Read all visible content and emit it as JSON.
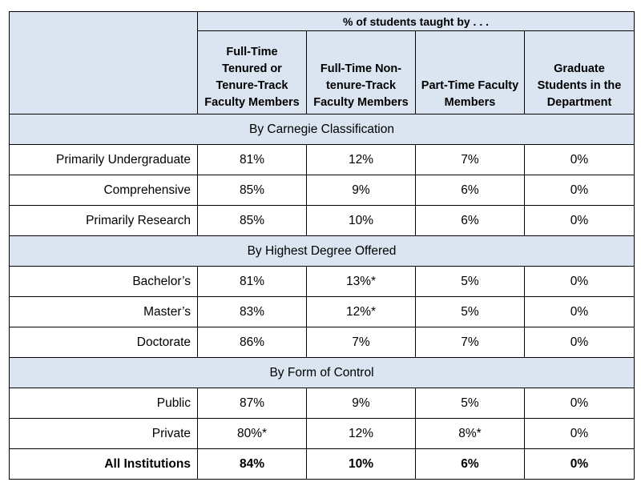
{
  "header": {
    "group_label": "% of students taught by . . .",
    "columns": [
      "Full-Time Tenured or Tenure-Track Faculty Members",
      "Full-Time Non-tenure-Track Faculty Members",
      "Part-Time Faculty Members",
      "Graduate Students in the Department"
    ]
  },
  "sections": [
    {
      "title": "By Carnegie Classification",
      "rows": [
        {
          "label": "Primarily Undergraduate",
          "values": [
            "81%",
            "12%",
            "7%",
            "0%"
          ]
        },
        {
          "label": "Comprehensive",
          "values": [
            "85%",
            "9%",
            "6%",
            "0%"
          ]
        },
        {
          "label": "Primarily Research",
          "values": [
            "85%",
            "10%",
            "6%",
            "0%"
          ]
        }
      ]
    },
    {
      "title": "By Highest Degree Offered",
      "rows": [
        {
          "label": "Bachelor’s",
          "values": [
            "81%",
            "13%*",
            "5%",
            "0%"
          ]
        },
        {
          "label": "Master’s",
          "values": [
            "83%",
            "12%*",
            "5%",
            "0%"
          ]
        },
        {
          "label": "Doctorate",
          "values": [
            "86%",
            "7%",
            "7%",
            "0%"
          ]
        }
      ]
    },
    {
      "title": "By Form of Control",
      "rows": [
        {
          "label": "Public",
          "values": [
            "87%",
            "9%",
            "5%",
            "0%"
          ]
        },
        {
          "label": "Private",
          "values": [
            "80%*",
            "12%",
            "8%*",
            "0%"
          ]
        }
      ]
    }
  ],
  "total": {
    "label": "All Institutions",
    "values": [
      "84%",
      "10%",
      "6%",
      "0%"
    ]
  },
  "colors": {
    "header_bg": "#dbe5f1",
    "border": "#000000"
  }
}
